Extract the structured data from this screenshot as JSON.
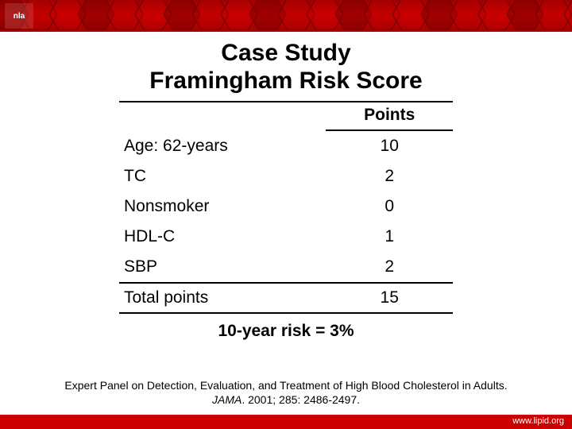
{
  "header": {
    "logo_text": "nla",
    "hex_stroke": "#7a0000",
    "bar_gradient": [
      "#a00000",
      "#cc0000",
      "#a00000"
    ]
  },
  "title": {
    "line1": "Case Study",
    "line2": "Framingham Risk Score"
  },
  "table": {
    "points_header": "Points",
    "rows": [
      {
        "label": "Age: 62-years",
        "value": "10"
      },
      {
        "label": "TC",
        "value": "2"
      },
      {
        "label": "Nonsmoker",
        "value": "0"
      },
      {
        "label": "HDL-C",
        "value": "1"
      },
      {
        "label": "SBP",
        "value": "2"
      }
    ],
    "total_label": "Total points",
    "total_value": "15"
  },
  "risk_statement": "10-year risk = 3%",
  "citation": {
    "line1": "Expert Panel on Detection, Evaluation, and Treatment of High Blood Cholesterol in Adults.",
    "journal": "JAMA",
    "ref": ". 2001; 285: 2486-2497."
  },
  "footer": {
    "url": "www.lipid.org",
    "bar_color": "#cc0000"
  },
  "colors": {
    "text": "#000000",
    "rule": "#000000",
    "background": "#ffffff"
  }
}
